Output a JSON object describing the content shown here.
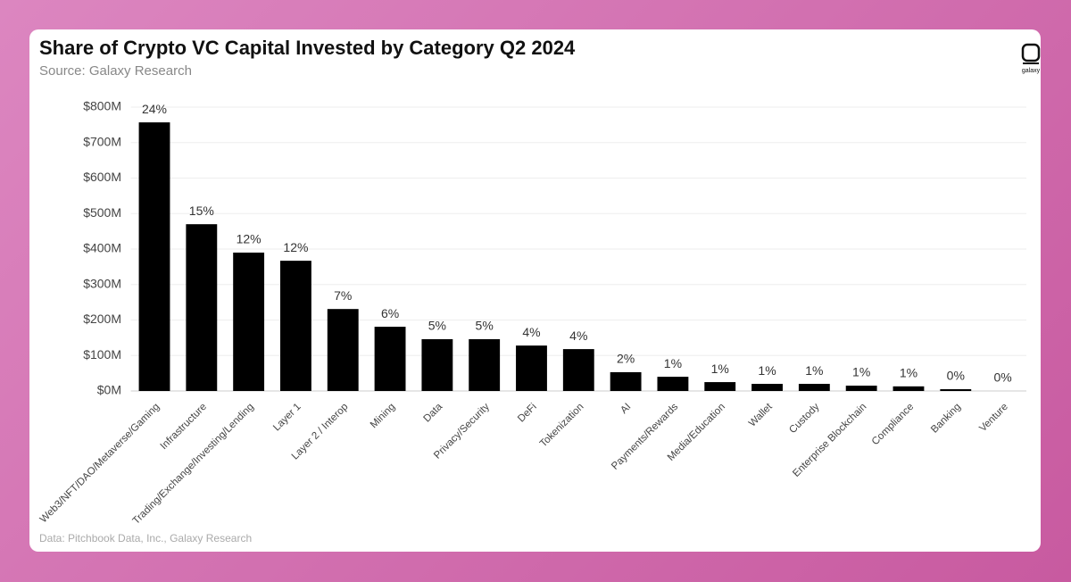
{
  "chart_data": {
    "type": "bar",
    "title": "Share of Crypto VC Capital Invested by Category Q2 2024",
    "subtitle": "Source: Galaxy Research",
    "logo_text": "galaxy",
    "footnote": "Data: Pitchbook Data, Inc., Galaxy Research",
    "categories": [
      "Web3/NFT/DAO/Metaverse/Gaming",
      "Infrastructure",
      "Trading/Exchange/Investing/Lending",
      "Layer 1",
      "Layer 2 / Interop",
      "Mining",
      "Data",
      "Privacy/Security",
      "DeFi",
      "Tokenization",
      "AI",
      "Payments/Rewards",
      "Media/Education",
      "Wallet",
      "Custody",
      "Enterprise Blockchain",
      "Compliance",
      "Banking",
      "Venture"
    ],
    "values": [
      757,
      470,
      390,
      367,
      231,
      181,
      146,
      146,
      128,
      118,
      53,
      40,
      25,
      20,
      20,
      15,
      13,
      5,
      0
    ],
    "share_labels": [
      "24%",
      "15%",
      "12%",
      "12%",
      "7%",
      "6%",
      "5%",
      "5%",
      "4%",
      "4%",
      "2%",
      "1%",
      "1%",
      "1%",
      "1%",
      "1%",
      "1%",
      "0%",
      "0%"
    ],
    "color": "#000000",
    "ylim": [
      0,
      800
    ],
    "yticks": [
      {
        "value": 0,
        "label": "$0M"
      },
      {
        "value": 100,
        "label": "$100M"
      },
      {
        "value": 200,
        "label": "$200M"
      },
      {
        "value": 300,
        "label": "$300M"
      },
      {
        "value": 400,
        "label": "$400M"
      },
      {
        "value": 500,
        "label": "$500M"
      },
      {
        "value": 600,
        "label": "$600M"
      },
      {
        "value": 700,
        "label": "$700M"
      },
      {
        "value": 800,
        "label": "$800M"
      }
    ],
    "grid": true
  }
}
